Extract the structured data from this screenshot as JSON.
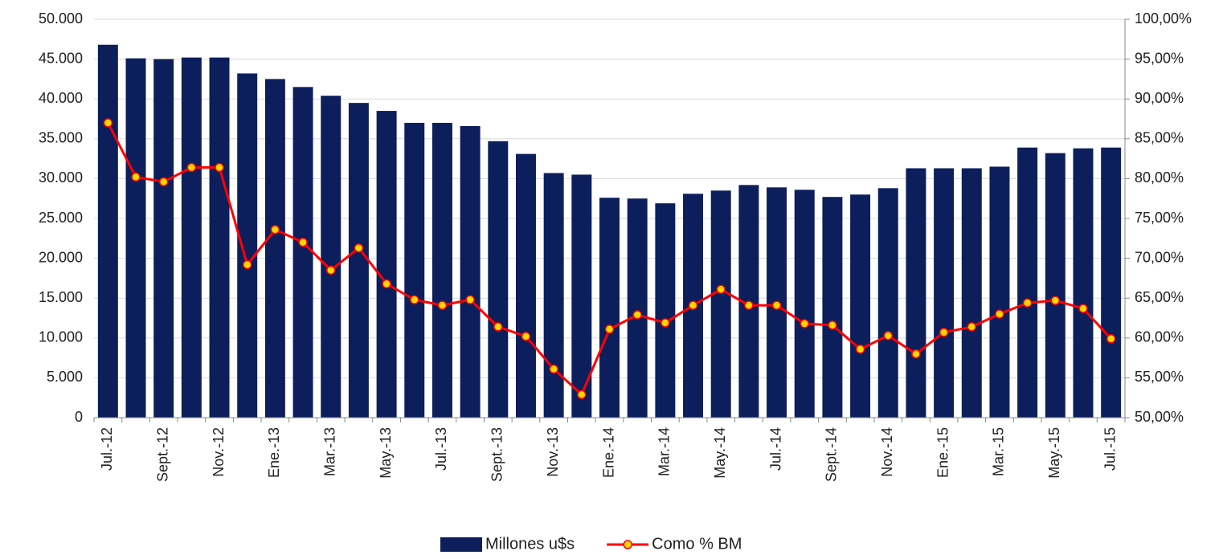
{
  "chart_data": {
    "type": "bar_line",
    "categories": [
      "Jul.-12",
      null,
      "Sept.-12",
      null,
      "Nov.-12",
      null,
      "Ene.-13",
      null,
      "Mar.-13",
      null,
      "May.-13",
      null,
      "Jul.-13",
      null,
      "Sept.-13",
      null,
      "Nov.-13",
      null,
      "Ene.-14",
      null,
      "Mar.-14",
      null,
      "May.-14",
      null,
      "Jul.-14",
      null,
      "Sept.-14",
      null,
      "Nov.-14",
      null,
      "Ene.-15",
      null,
      "Mar.-15",
      null,
      "May.-15",
      null,
      "Jul.-15"
    ],
    "series": [
      {
        "name": "Millones u$s",
        "type": "bar",
        "color": "#0c1f5c",
        "values": [
          46800,
          45100,
          45000,
          45200,
          45200,
          43200,
          42500,
          41500,
          40400,
          39500,
          38500,
          37000,
          37000,
          36600,
          34700,
          33100,
          30700,
          30500,
          27600,
          27500,
          26900,
          28100,
          28500,
          29200,
          28900,
          28600,
          27700,
          28000,
          28800,
          31300,
          31300,
          31300,
          31500,
          33900,
          33200,
          33800,
          33900
        ]
      },
      {
        "name": "Como % BM",
        "type": "line",
        "axis": "y2",
        "color": "#ff0000",
        "marker_color": "#ffd700",
        "values": [
          87,
          80.2,
          79.6,
          81.4,
          81.4,
          69.2,
          73.6,
          72,
          68.5,
          71.3,
          66.8,
          64.8,
          64.1,
          64.8,
          61.4,
          60.2,
          56.1,
          52.9,
          61.1,
          62.9,
          61.9,
          64.1,
          66.1,
          64.1,
          64.1,
          61.8,
          61.6,
          58.6,
          60.3,
          58,
          60.7,
          61.4,
          63,
          64.4,
          64.7,
          63.7,
          59.9
        ]
      }
    ],
    "ylim": [
      0,
      50000
    ],
    "yticks": [
      0,
      {
        "value": 5000,
        "label": "5.000"
      },
      {
        "value": 10000,
        "label": "10.000"
      },
      {
        "value": 15000,
        "label": "15.000"
      },
      {
        "value": 20000,
        "label": "20.000"
      },
      {
        "value": 25000,
        "label": "25.000"
      },
      {
        "value": 30000,
        "label": "30.000"
      },
      {
        "value": 35000,
        "label": "35.000"
      },
      {
        "value": 40000,
        "label": "40.000"
      },
      {
        "value": 45000,
        "label": "45.000"
      },
      {
        "value": 50000,
        "label": "50.000"
      }
    ],
    "y2lim": [
      50,
      100
    ],
    "y2ticks": [
      {
        "value": 50,
        "label": "50,00%"
      },
      {
        "value": 55,
        "label": "55,00%"
      },
      {
        "value": 60,
        "label": "60,00%"
      },
      {
        "value": 65,
        "label": "65,00%"
      },
      {
        "value": 70,
        "label": "70,00%"
      },
      {
        "value": 75,
        "label": "75,00%"
      },
      {
        "value": 80,
        "label": "80,00%"
      },
      {
        "value": 85,
        "label": "85,00%"
      },
      {
        "value": 90,
        "label": "90,00%"
      },
      {
        "value": 95,
        "label": "95,00%"
      },
      {
        "value": 100,
        "label": "100,00%"
      }
    ],
    "grid": true,
    "legend": "bottom"
  }
}
